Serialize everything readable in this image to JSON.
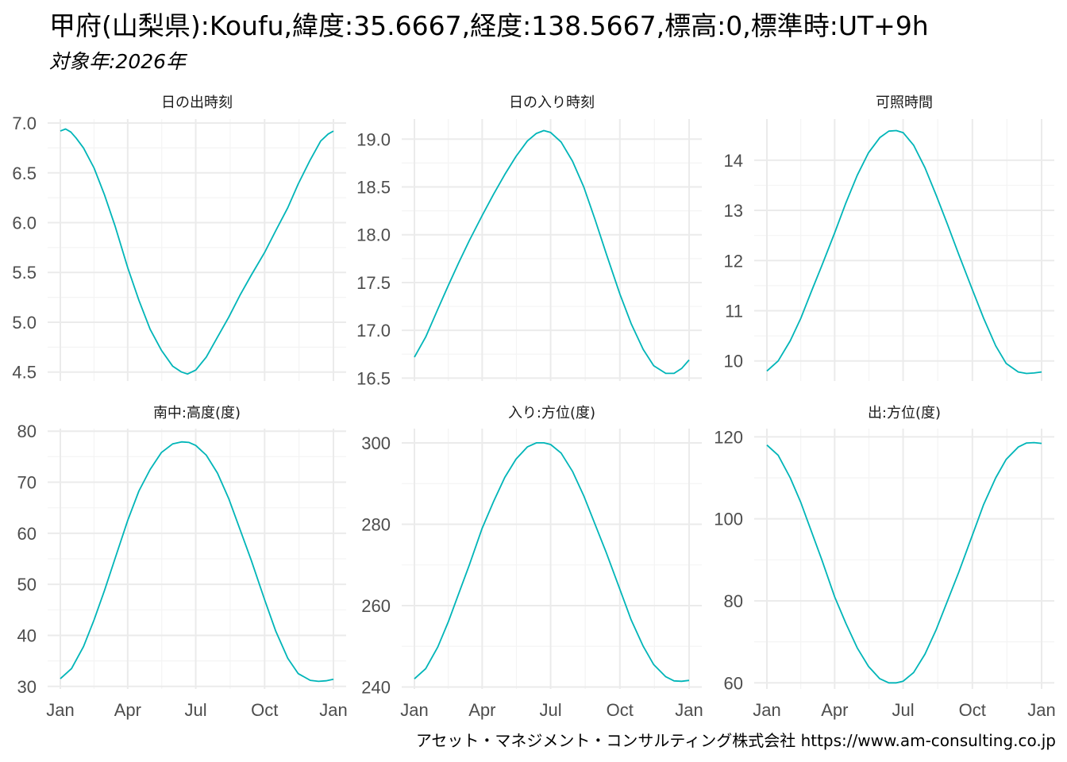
{
  "title": "甲府(山梨県):Koufu,緯度:35.6667,経度:138.5667,標高:0,標準時:UT+9h",
  "subtitle": "対象年:2026年",
  "credit": "アセット・マネジメント・コンサルティング株式会社 https://www.am-consulting.co.jp",
  "colors": {
    "line": "#00B5B8",
    "grid_major": "#EBEBEB",
    "grid_minor": "#F4F4F4",
    "tick_text": "#4D4D4D"
  },
  "chart_data": [
    {
      "type": "line",
      "title": "日の出時刻",
      "xlabel": "",
      "ylabel": "",
      "x_ticks": [
        "Jan",
        "Apr",
        "Jul",
        "Oct",
        "Jan"
      ],
      "x_tick_days": [
        0,
        90,
        181,
        273,
        365
      ],
      "y_ticks": [
        4.5,
        5.0,
        5.5,
        6.0,
        6.5,
        7.0
      ],
      "ylim": [
        4.41,
        7.04
      ],
      "show_x_ticks": false,
      "series": [
        {
          "x_days": [
            0,
            7,
            14,
            21,
            31,
            45,
            59,
            73,
            90,
            105,
            120,
            135,
            150,
            162,
            170,
            181,
            195,
            210,
            225,
            240,
            255,
            273,
            288,
            304,
            318,
            334,
            348,
            358,
            365
          ],
          "values": [
            6.92,
            6.94,
            6.91,
            6.85,
            6.75,
            6.55,
            6.28,
            5.97,
            5.55,
            5.22,
            4.93,
            4.72,
            4.56,
            4.5,
            4.48,
            4.52,
            4.65,
            4.85,
            5.05,
            5.27,
            5.47,
            5.7,
            5.92,
            6.15,
            6.39,
            6.63,
            6.82,
            6.89,
            6.92
          ]
        }
      ]
    },
    {
      "type": "line",
      "title": "日の入り時刻",
      "xlabel": "",
      "ylabel": "",
      "x_ticks": [
        "Jan",
        "Apr",
        "Jul",
        "Oct",
        "Jan"
      ],
      "x_tick_days": [
        0,
        90,
        181,
        273,
        365
      ],
      "y_ticks": [
        16.5,
        17.0,
        17.5,
        18.0,
        18.5,
        19.0
      ],
      "ylim": [
        16.47,
        19.21
      ],
      "show_x_ticks": false,
      "series": [
        {
          "x_days": [
            0,
            15,
            31,
            45,
            59,
            73,
            90,
            105,
            120,
            135,
            150,
            162,
            172,
            181,
            195,
            210,
            225,
            240,
            255,
            273,
            288,
            304,
            318,
            334,
            345,
            355,
            365
          ],
          "values": [
            16.72,
            16.93,
            17.22,
            17.47,
            17.71,
            17.94,
            18.2,
            18.42,
            18.63,
            18.82,
            18.98,
            19.06,
            19.09,
            19.07,
            18.97,
            18.77,
            18.5,
            18.16,
            17.8,
            17.38,
            17.07,
            16.8,
            16.63,
            16.55,
            16.55,
            16.6,
            16.69
          ]
        }
      ]
    },
    {
      "type": "line",
      "title": "可照時間",
      "xlabel": "",
      "ylabel": "",
      "x_ticks": [
        "Jan",
        "Apr",
        "Jul",
        "Oct",
        "Jan"
      ],
      "x_tick_days": [
        0,
        90,
        181,
        273,
        365
      ],
      "y_ticks": [
        10,
        11,
        12,
        13,
        14
      ],
      "ylim": [
        9.6,
        14.82
      ],
      "show_x_ticks": false,
      "series": [
        {
          "x_days": [
            0,
            15,
            31,
            45,
            59,
            73,
            90,
            105,
            120,
            135,
            150,
            162,
            172,
            181,
            195,
            210,
            225,
            240,
            255,
            273,
            288,
            304,
            318,
            334,
            345,
            355,
            365
          ],
          "values": [
            9.8,
            10.0,
            10.4,
            10.85,
            11.38,
            11.9,
            12.55,
            13.15,
            13.7,
            14.15,
            14.45,
            14.58,
            14.59,
            14.55,
            14.3,
            13.85,
            13.3,
            12.72,
            12.12,
            11.42,
            10.85,
            10.3,
            9.95,
            9.78,
            9.75,
            9.76,
            9.78
          ]
        }
      ]
    },
    {
      "type": "line",
      "title": "南中:高度(度)",
      "xlabel": "",
      "ylabel": "",
      "x_ticks": [
        "Jan",
        "Apr",
        "Jul",
        "Oct",
        "Jan"
      ],
      "x_tick_days": [
        0,
        90,
        181,
        273,
        365
      ],
      "y_ticks": [
        30,
        40,
        50,
        60,
        70,
        80
      ],
      "ylim": [
        29.5,
        80.5
      ],
      "show_x_ticks": true,
      "series": [
        {
          "x_days": [
            0,
            15,
            31,
            45,
            59,
            73,
            90,
            105,
            120,
            135,
            150,
            162,
            172,
            181,
            195,
            210,
            225,
            240,
            255,
            273,
            288,
            304,
            318,
            334,
            345,
            355,
            365
          ],
          "values": [
            31.5,
            33.5,
            37.8,
            43.0,
            48.8,
            55.0,
            62.5,
            68.3,
            72.5,
            75.8,
            77.5,
            77.9,
            77.8,
            77.2,
            75.3,
            71.8,
            66.8,
            60.8,
            54.8,
            47.0,
            40.8,
            35.5,
            32.5,
            31.2,
            31.0,
            31.1,
            31.4
          ]
        }
      ]
    },
    {
      "type": "line",
      "title": "入り:方位(度)",
      "xlabel": "",
      "ylabel": "",
      "x_ticks": [
        "Jan",
        "Apr",
        "Jul",
        "Oct",
        "Jan"
      ],
      "x_tick_days": [
        0,
        90,
        181,
        273,
        365
      ],
      "y_ticks": [
        240,
        260,
        280,
        300
      ],
      "ylim": [
        239.5,
        303.5
      ],
      "show_x_ticks": true,
      "series": [
        {
          "x_days": [
            0,
            15,
            31,
            45,
            59,
            73,
            90,
            105,
            120,
            135,
            150,
            162,
            172,
            181,
            195,
            210,
            225,
            240,
            255,
            273,
            288,
            304,
            318,
            334,
            345,
            355,
            365
          ],
          "values": [
            242.0,
            244.5,
            249.8,
            256.0,
            263.0,
            270.0,
            279.0,
            285.5,
            291.5,
            296.0,
            299.0,
            300.0,
            300.0,
            299.6,
            297.5,
            293.0,
            287.0,
            280.0,
            273.0,
            264.0,
            256.5,
            250.0,
            245.5,
            242.5,
            241.5,
            241.4,
            241.6
          ]
        }
      ]
    },
    {
      "type": "line",
      "title": "出:方位(度)",
      "xlabel": "",
      "ylabel": "",
      "x_ticks": [
        "Jan",
        "Apr",
        "Jul",
        "Oct",
        "Jan"
      ],
      "x_tick_days": [
        0,
        90,
        181,
        273,
        365
      ],
      "y_ticks": [
        60,
        80,
        100,
        120
      ],
      "ylim": [
        58.5,
        122.0
      ],
      "show_x_ticks": true,
      "series": [
        {
          "x_days": [
            0,
            15,
            31,
            45,
            59,
            73,
            90,
            105,
            120,
            135,
            150,
            162,
            172,
            181,
            195,
            210,
            225,
            240,
            255,
            273,
            288,
            304,
            318,
            334,
            345,
            355,
            365
          ],
          "values": [
            118.0,
            115.5,
            110.0,
            104.0,
            97.0,
            90.0,
            81.0,
            74.5,
            68.5,
            64.0,
            61.0,
            60.0,
            60.0,
            60.4,
            62.5,
            67.0,
            73.0,
            80.0,
            87.0,
            96.0,
            103.5,
            110.0,
            114.5,
            117.5,
            118.5,
            118.6,
            118.4
          ]
        }
      ]
    }
  ]
}
